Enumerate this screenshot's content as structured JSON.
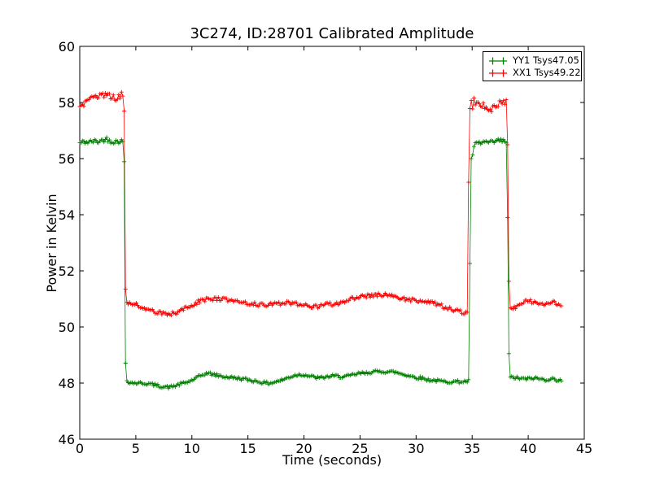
{
  "window": {
    "background": "#ffffff"
  },
  "chart_data": {
    "type": "line",
    "title": "3C274, ID:28701 Calibrated Amplitude",
    "xlabel": "Time (seconds)",
    "ylabel": "Power in Kelvin",
    "xlim": [
      0,
      45
    ],
    "ylim": [
      46,
      60
    ],
    "xticks": [
      0,
      5,
      10,
      15,
      20,
      25,
      30,
      35,
      40,
      45
    ],
    "yticks": [
      46,
      48,
      50,
      52,
      54,
      56,
      58,
      60
    ],
    "grid": false,
    "tick_style": "inward-all-sides",
    "marker": "+",
    "marker_size": 5,
    "sample_interval": 0.12,
    "noise": {
      "high_threshold": 55,
      "high_region_multiplier": 1.5
    },
    "legend": {
      "position": "upper-right",
      "border_color": "#000000",
      "background": "#ffffff"
    },
    "axis_color": "#000000",
    "series": [
      {
        "name": "YY1 Tsys47.05",
        "color": "#008000",
        "noise_amplitude": 0.055,
        "keypoints": [
          [
            0,
            56.55
          ],
          [
            0.4,
            56.6
          ],
          [
            0.8,
            56.58
          ],
          [
            1.2,
            56.62
          ],
          [
            1.6,
            56.6
          ],
          [
            2.0,
            56.65
          ],
          [
            2.4,
            56.7
          ],
          [
            2.8,
            56.62
          ],
          [
            3.2,
            56.6
          ],
          [
            3.6,
            56.63
          ],
          [
            3.95,
            56.6
          ],
          [
            4.05,
            49.0
          ],
          [
            4.15,
            48.1
          ],
          [
            4.5,
            48.02
          ],
          [
            5,
            48.0
          ],
          [
            5.5,
            48.0
          ],
          [
            6,
            47.98
          ],
          [
            6.5,
            47.95
          ],
          [
            7,
            47.9
          ],
          [
            7.5,
            47.87
          ],
          [
            8,
            47.85
          ],
          [
            8.5,
            47.9
          ],
          [
            9,
            47.97
          ],
          [
            9.5,
            48.02
          ],
          [
            10,
            48.1
          ],
          [
            10.5,
            48.2
          ],
          [
            11,
            48.3
          ],
          [
            11.3,
            48.35
          ],
          [
            11.7,
            48.33
          ],
          [
            12,
            48.3
          ],
          [
            12.5,
            48.25
          ],
          [
            13,
            48.22
          ],
          [
            13.5,
            48.2
          ],
          [
            14,
            48.18
          ],
          [
            14.5,
            48.15
          ],
          [
            15,
            48.12
          ],
          [
            15.5,
            48.08
          ],
          [
            16,
            48.05
          ],
          [
            16.5,
            48.0
          ],
          [
            17,
            48.0
          ],
          [
            17.5,
            48.05
          ],
          [
            18,
            48.1
          ],
          [
            18.5,
            48.18
          ],
          [
            19,
            48.25
          ],
          [
            19.5,
            48.3
          ],
          [
            20,
            48.3
          ],
          [
            20.5,
            48.25
          ],
          [
            21,
            48.2
          ],
          [
            21.5,
            48.18
          ],
          [
            22,
            48.22
          ],
          [
            22.5,
            48.25
          ],
          [
            23,
            48.25
          ],
          [
            23.5,
            48.22
          ],
          [
            24,
            48.25
          ],
          [
            24.5,
            48.3
          ],
          [
            25,
            48.35
          ],
          [
            25.5,
            48.35
          ],
          [
            26,
            48.4
          ],
          [
            26.5,
            48.4
          ],
          [
            27,
            48.42
          ],
          [
            27.5,
            48.4
          ],
          [
            28,
            48.4
          ],
          [
            28.5,
            48.35
          ],
          [
            29,
            48.3
          ],
          [
            29.5,
            48.25
          ],
          [
            30,
            48.2
          ],
          [
            30.5,
            48.18
          ],
          [
            31,
            48.12
          ],
          [
            31.5,
            48.1
          ],
          [
            32,
            48.08
          ],
          [
            32.5,
            48.05
          ],
          [
            33,
            48.05
          ],
          [
            33.5,
            48.05
          ],
          [
            34,
            48.05
          ],
          [
            34.4,
            48.05
          ],
          [
            34.75,
            48.08
          ],
          [
            34.85,
            56.35
          ],
          [
            34.95,
            55.9
          ],
          [
            35.05,
            56.15
          ],
          [
            35.2,
            56.45
          ],
          [
            35.4,
            56.55
          ],
          [
            35.8,
            56.55
          ],
          [
            36.2,
            56.6
          ],
          [
            36.6,
            56.55
          ],
          [
            37,
            56.6
          ],
          [
            37.4,
            56.65
          ],
          [
            37.7,
            56.62
          ],
          [
            38.05,
            56.6
          ],
          [
            38.15,
            54.3
          ],
          [
            38.3,
            48.2
          ],
          [
            38.6,
            48.2
          ],
          [
            39,
            48.18
          ],
          [
            39.5,
            48.15
          ],
          [
            40,
            48.15
          ],
          [
            40.5,
            48.18
          ],
          [
            41,
            48.15
          ],
          [
            41.5,
            48.12
          ],
          [
            42,
            48.15
          ],
          [
            42.5,
            48.12
          ],
          [
            43,
            48.1
          ]
        ]
      },
      {
        "name": "XX1 Tsys49.22",
        "color": "#ff0000",
        "noise_amplitude": 0.07,
        "keypoints": [
          [
            0,
            57.9
          ],
          [
            0.4,
            57.95
          ],
          [
            0.8,
            58.05
          ],
          [
            1.2,
            58.15
          ],
          [
            1.6,
            58.25
          ],
          [
            2.0,
            58.3
          ],
          [
            2.4,
            58.25
          ],
          [
            2.8,
            58.2
          ],
          [
            3.2,
            58.15
          ],
          [
            3.5,
            58.2
          ],
          [
            3.7,
            58.3
          ],
          [
            3.95,
            58.35
          ],
          [
            4.05,
            51.5
          ],
          [
            4.2,
            50.85
          ],
          [
            4.6,
            50.82
          ],
          [
            5,
            50.8
          ],
          [
            5.5,
            50.72
          ],
          [
            6,
            50.65
          ],
          [
            6.5,
            50.55
          ],
          [
            7,
            50.5
          ],
          [
            7.5,
            50.47
          ],
          [
            8,
            50.45
          ],
          [
            8.5,
            50.5
          ],
          [
            9,
            50.58
          ],
          [
            9.5,
            50.68
          ],
          [
            10,
            50.78
          ],
          [
            10.5,
            50.88
          ],
          [
            11,
            50.95
          ],
          [
            11.5,
            51.0
          ],
          [
            12,
            51.0
          ],
          [
            12.5,
            51.0
          ],
          [
            13,
            50.97
          ],
          [
            13.5,
            50.95
          ],
          [
            14,
            50.9
          ],
          [
            14.5,
            50.88
          ],
          [
            15,
            50.85
          ],
          [
            15.5,
            50.82
          ],
          [
            16,
            50.8
          ],
          [
            16.5,
            50.78
          ],
          [
            17,
            50.8
          ],
          [
            17.5,
            50.82
          ],
          [
            18,
            50.85
          ],
          [
            18.5,
            50.85
          ],
          [
            19,
            50.85
          ],
          [
            19.5,
            50.82
          ],
          [
            20,
            50.78
          ],
          [
            20.5,
            50.73
          ],
          [
            21,
            50.72
          ],
          [
            21.5,
            50.75
          ],
          [
            22,
            50.8
          ],
          [
            22.5,
            50.82
          ],
          [
            23,
            50.85
          ],
          [
            23.5,
            50.9
          ],
          [
            24,
            50.95
          ],
          [
            24.5,
            51.05
          ],
          [
            25,
            51.1
          ],
          [
            25.5,
            51.1
          ],
          [
            26,
            51.12
          ],
          [
            26.5,
            51.15
          ],
          [
            27,
            51.15
          ],
          [
            27.5,
            51.12
          ],
          [
            28,
            51.1
          ],
          [
            28.5,
            51.05
          ],
          [
            29,
            51.0
          ],
          [
            29.5,
            50.97
          ],
          [
            30,
            50.95
          ],
          [
            30.5,
            50.9
          ],
          [
            31,
            50.88
          ],
          [
            31.5,
            50.85
          ],
          [
            32,
            50.8
          ],
          [
            32.5,
            50.72
          ],
          [
            33,
            50.65
          ],
          [
            33.5,
            50.6
          ],
          [
            34,
            50.55
          ],
          [
            34.3,
            50.48
          ],
          [
            34.6,
            50.52
          ],
          [
            34.72,
            57.5
          ],
          [
            34.85,
            57.95
          ],
          [
            34.95,
            58.25
          ],
          [
            35.05,
            57.7
          ],
          [
            35.15,
            58.15
          ],
          [
            35.25,
            57.85
          ],
          [
            35.4,
            58.05
          ],
          [
            35.6,
            57.9
          ],
          [
            36,
            57.9
          ],
          [
            36.4,
            57.8
          ],
          [
            36.7,
            57.75
          ],
          [
            37,
            57.85
          ],
          [
            37.4,
            57.95
          ],
          [
            37.7,
            58.0
          ],
          [
            38.05,
            58.05
          ],
          [
            38.18,
            56.1
          ],
          [
            38.3,
            50.7
          ],
          [
            38.6,
            50.62
          ],
          [
            39,
            50.75
          ],
          [
            39.4,
            50.87
          ],
          [
            39.8,
            50.95
          ],
          [
            40.2,
            50.92
          ],
          [
            40.6,
            50.85
          ],
          [
            41,
            50.8
          ],
          [
            41.4,
            50.8
          ],
          [
            41.8,
            50.88
          ],
          [
            42.2,
            50.9
          ],
          [
            42.6,
            50.82
          ],
          [
            43,
            50.75
          ]
        ]
      }
    ]
  }
}
